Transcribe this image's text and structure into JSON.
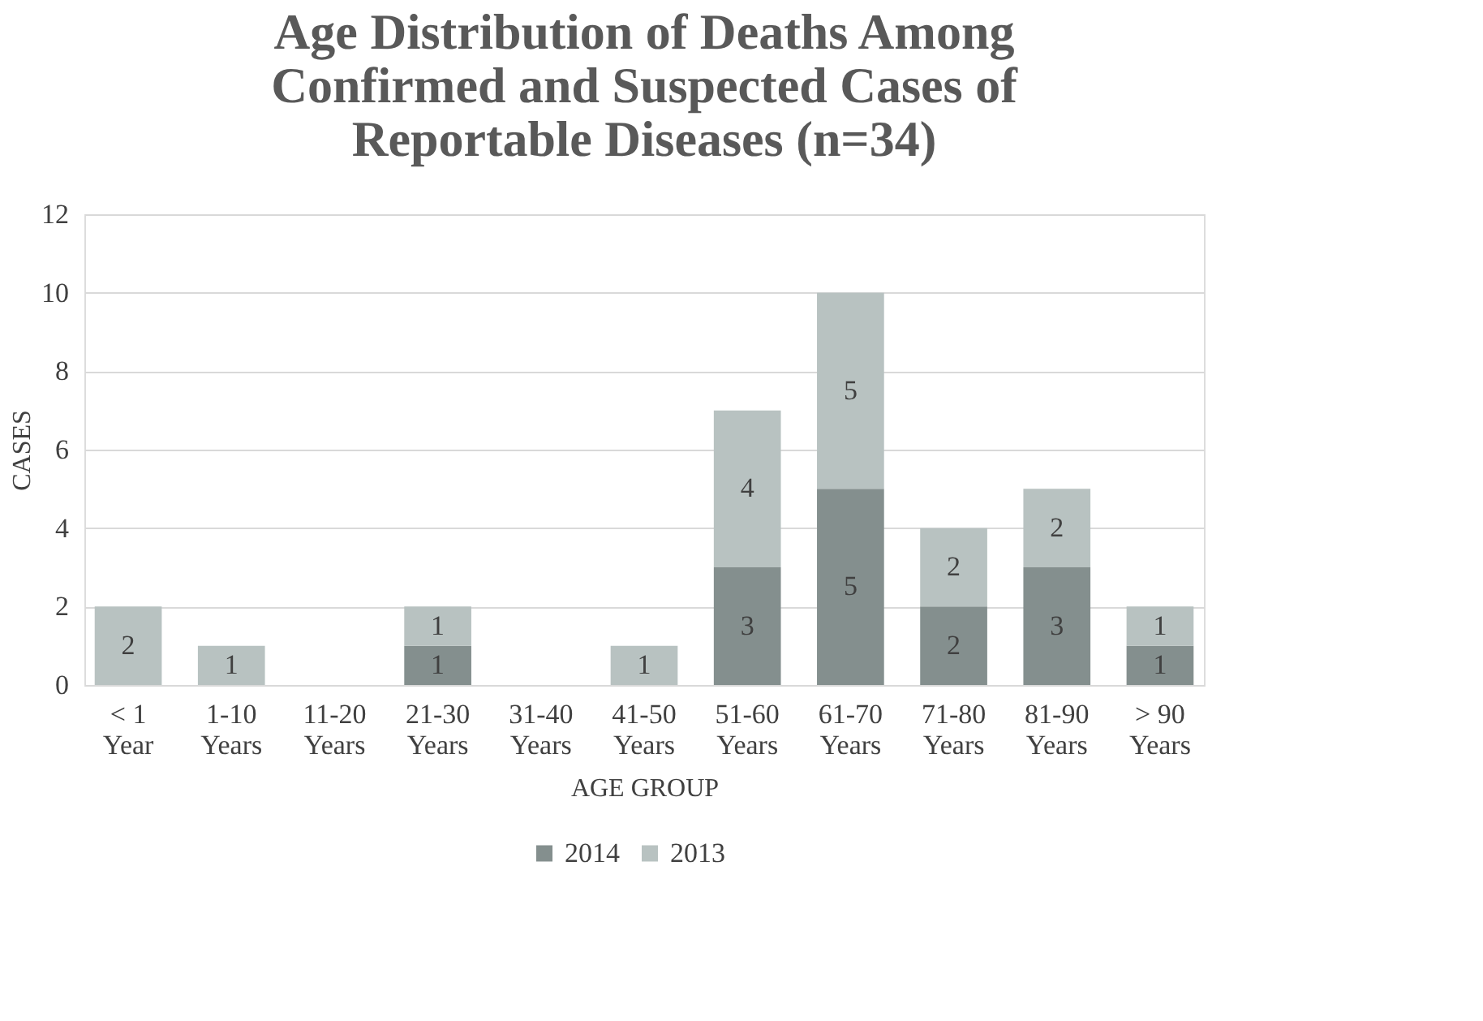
{
  "chart_data": {
    "type": "bar",
    "title": "Age Distribution of Deaths Among Confirmed and Suspected Cases of Reportable Diseases (n=34)",
    "xlabel": "AGE GROUP",
    "ylabel": "CASES",
    "categories": [
      "< 1 Year",
      "1-10 Years",
      "11-20 Years",
      "21-30 Years",
      "31-40 Years",
      "41-50 Years",
      "51-60 Years",
      "61-70 Years",
      "71-80 Years",
      "81-90 Years",
      "> 90 Years"
    ],
    "stacked": true,
    "series": [
      {
        "name": "2014",
        "color": "#848f8e",
        "values": [
          0,
          0,
          0,
          1,
          0,
          0,
          3,
          5,
          2,
          3,
          1
        ],
        "value_labels": [
          null,
          null,
          null,
          "1",
          null,
          null,
          "3",
          "5",
          "2",
          "3",
          "1"
        ]
      },
      {
        "name": "2013",
        "color": "#b8c2c1",
        "values": [
          2,
          1,
          0,
          1,
          0,
          1,
          4,
          5,
          2,
          2,
          1
        ],
        "value_labels": [
          "2",
          "1",
          null,
          "1",
          null,
          "1",
          "4",
          "5",
          "2",
          "2",
          "1"
        ]
      }
    ],
    "ylim": [
      0,
      12
    ],
    "yticks": [
      0,
      2,
      4,
      6,
      8,
      10,
      12
    ],
    "grid": "y",
    "legend": "bottom"
  }
}
